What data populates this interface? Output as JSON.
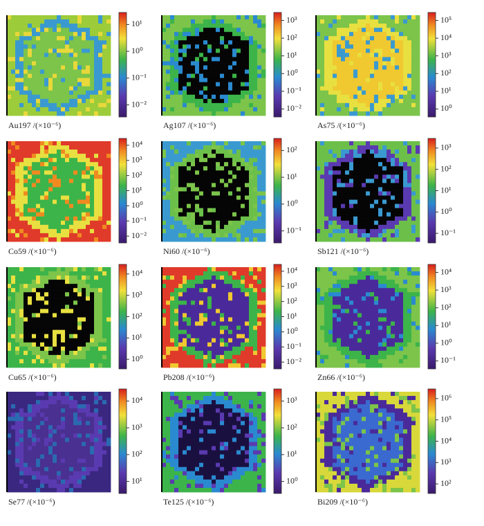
{
  "panels": [
    {
      "label": "Au197 /(×10⁻⁶)",
      "ticks": [
        {
          "value": 10,
          "label": "10¹"
        },
        {
          "value": 1,
          "label": "10⁰"
        },
        {
          "value": 0.1,
          "label": "10⁻¹"
        },
        {
          "value": 0.01,
          "label": "10⁻²"
        }
      ]
    },
    {
      "label": "Ag107 /(×10⁻⁶)",
      "ticks": [
        {
          "value": 1000,
          "label": "10³"
        },
        {
          "value": 100,
          "label": "10²"
        },
        {
          "value": 10,
          "label": "10¹"
        },
        {
          "value": 1,
          "label": "10⁰"
        },
        {
          "value": 0.1,
          "label": "10⁻¹"
        },
        {
          "value": 0.01,
          "label": "10⁻²"
        }
      ]
    },
    {
      "label": "As75 /(×10⁻⁶)",
      "ticks": [
        {
          "value": 100000,
          "label": "10⁵"
        },
        {
          "value": 10000,
          "label": "10⁴"
        },
        {
          "value": 1000,
          "label": "10³"
        },
        {
          "value": 100,
          "label": "10²"
        },
        {
          "value": 10,
          "label": "10¹"
        },
        {
          "value": 1,
          "label": "10⁰"
        }
      ]
    },
    {
      "label": "Co59 /(×10⁻⁶)",
      "ticks": [
        {
          "value": 10000,
          "label": "10⁴"
        },
        {
          "value": 1000,
          "label": "10³"
        },
        {
          "value": 100,
          "label": "10²"
        },
        {
          "value": 10,
          "label": "10¹"
        },
        {
          "value": 1,
          "label": "10⁰"
        },
        {
          "value": 0.1,
          "label": "10⁻¹"
        },
        {
          "value": 0.01,
          "label": "10⁻²"
        }
      ]
    },
    {
      "label": "Ni60 /(×10⁻⁶)",
      "ticks": [
        {
          "value": 100,
          "label": "10²"
        },
        {
          "value": 10,
          "label": "10¹"
        },
        {
          "value": 1,
          "label": "10⁰"
        },
        {
          "value": 0.1,
          "label": "10⁻¹"
        }
      ]
    },
    {
      "label": "Sb121 /(×10⁻⁶)",
      "ticks": [
        {
          "value": 1000,
          "label": "10³"
        },
        {
          "value": 100,
          "label": "10²"
        },
        {
          "value": 10,
          "label": "10¹"
        },
        {
          "value": 1,
          "label": "10⁰"
        },
        {
          "value": 0.1,
          "label": "10⁻¹"
        }
      ]
    },
    {
      "label": "Cu65 /(×10⁻⁶)",
      "ticks": [
        {
          "value": 10000,
          "label": "10⁴"
        },
        {
          "value": 1000,
          "label": "10³"
        },
        {
          "value": 100,
          "label": "10²"
        },
        {
          "value": 10,
          "label": "10¹"
        },
        {
          "value": 1,
          "label": "10⁰"
        }
      ]
    },
    {
      "label": "Pb208 /(×10⁻⁶)",
      "ticks": [
        {
          "value": 10000,
          "label": "10⁴"
        },
        {
          "value": 1000,
          "label": "10³"
        },
        {
          "value": 100,
          "label": "10²"
        },
        {
          "value": 10,
          "label": "10¹"
        },
        {
          "value": 1,
          "label": "10⁰"
        },
        {
          "value": 0.1,
          "label": "10⁻¹"
        },
        {
          "value": 0.01,
          "label": "10⁻²"
        }
      ]
    },
    {
      "label": "Zn66 /(×10⁻⁶)",
      "ticks": [
        {
          "value": 10000,
          "label": "10⁴"
        },
        {
          "value": 1000,
          "label": "10³"
        },
        {
          "value": 100,
          "label": "10²"
        },
        {
          "value": 10,
          "label": "10¹"
        },
        {
          "value": 1,
          "label": "10⁰"
        },
        {
          "value": 0.1,
          "label": "10⁻¹"
        }
      ]
    },
    {
      "label": "Se77 /(×10⁻⁶)",
      "ticks": [
        {
          "value": 10000,
          "label": "10⁴"
        },
        {
          "value": 1000,
          "label": "10³"
        },
        {
          "value": 100,
          "label": "10²"
        },
        {
          "value": 10,
          "label": "10¹"
        }
      ]
    },
    {
      "label": "Te125 /(×10⁻⁶)",
      "ticks": [
        {
          "value": 1000,
          "label": "10³"
        },
        {
          "value": 100,
          "label": "10²"
        },
        {
          "value": 10,
          "label": "10¹"
        },
        {
          "value": 1,
          "label": "10⁰"
        }
      ]
    },
    {
      "label": "Bi209 /(×10⁻⁶)",
      "ticks": [
        {
          "value": 1000000,
          "label": "10⁶"
        },
        {
          "value": 100000,
          "label": "10⁵"
        },
        {
          "value": 10000,
          "label": "10⁴"
        },
        {
          "value": 1000,
          "label": "10³"
        },
        {
          "value": 100,
          "label": "10²"
        }
      ]
    }
  ]
}
